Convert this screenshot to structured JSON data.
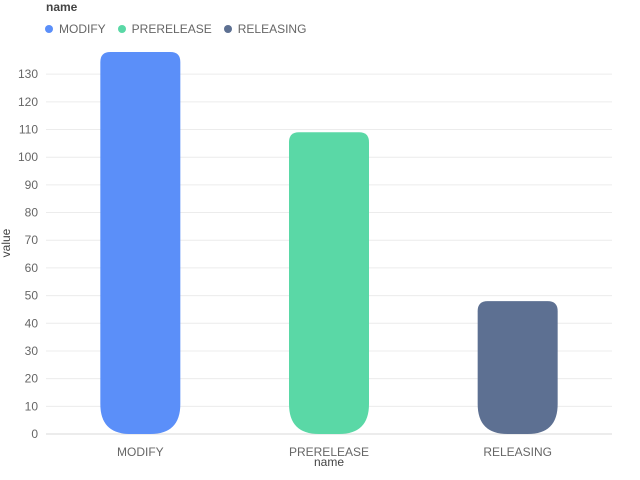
{
  "legend": {
    "title": "name",
    "items": [
      {
        "label": "MODIFY",
        "color": "#5B8FF9"
      },
      {
        "label": "PRERELEASE",
        "color": "#5AD8A6"
      },
      {
        "label": "RELEASING",
        "color": "#5D7092"
      }
    ]
  },
  "chart_data": {
    "type": "bar",
    "categories": [
      "MODIFY",
      "PRERELEASE",
      "RELEASING"
    ],
    "values": [
      138,
      109,
      48
    ],
    "colors": [
      "#5B8FF9",
      "#5AD8A6",
      "#5D7092"
    ],
    "title": "",
    "xlabel": "name",
    "ylabel": "value",
    "ylim": [
      0,
      138
    ],
    "yticks": [
      0,
      10,
      20,
      30,
      40,
      50,
      60,
      70,
      80,
      90,
      100,
      110,
      120,
      130
    ],
    "grid": true,
    "legend_position": "top-left"
  }
}
